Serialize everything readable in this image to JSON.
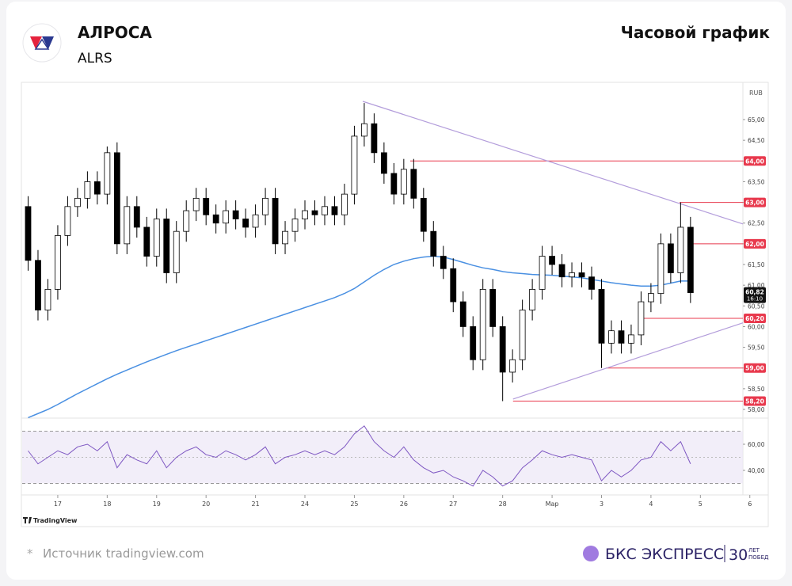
{
  "header": {
    "title": "АЛРОСА",
    "ticker": "ALRS",
    "chart_label": "Часовой график"
  },
  "chart_data": {
    "type": "candlestick",
    "currency": "RUB",
    "brand": "TradingView",
    "grid": false,
    "xlim": [
      -0.72,
      13.86
    ],
    "xticks": [
      {
        "value": 0,
        "label": "17"
      },
      {
        "value": 1,
        "label": "18"
      },
      {
        "value": 2,
        "label": "19"
      },
      {
        "value": 3,
        "label": "20"
      },
      {
        "value": 4,
        "label": "21"
      },
      {
        "value": 5,
        "label": "24"
      },
      {
        "value": 6,
        "label": "25"
      },
      {
        "value": 7,
        "label": "26"
      },
      {
        "value": 8,
        "label": "27"
      },
      {
        "value": 9,
        "label": "28"
      },
      {
        "value": 10,
        "label": "Мар"
      },
      {
        "value": 11,
        "label": "3"
      },
      {
        "value": 12,
        "label": "4"
      },
      {
        "value": 13,
        "label": "5"
      },
      {
        "value": 14,
        "label": "6"
      }
    ],
    "ylim": [
      57.79,
      65.88
    ],
    "yticks": [
      {
        "value": 58,
        "label": "58,00"
      },
      {
        "value": 58.5,
        "label": "58,50"
      },
      {
        "value": 59,
        "label": "59,00"
      },
      {
        "value": 59.5,
        "label": "59,50"
      },
      {
        "value": 60,
        "label": "60,00"
      },
      {
        "value": 60.5,
        "label": "60,50"
      },
      {
        "value": 61,
        "label": "61,00"
      },
      {
        "value": 61.5,
        "label": "61,50"
      },
      {
        "value": 62,
        "label": "62,00"
      },
      {
        "value": 62.5,
        "label": "62,50"
      },
      {
        "value": 63,
        "label": "63,00"
      },
      {
        "value": 63.5,
        "label": "63,50"
      },
      {
        "value": 64,
        "label": "64,00"
      },
      {
        "value": 64.5,
        "label": "64,50"
      },
      {
        "value": 65,
        "label": "65,00"
      }
    ],
    "up_color": "#ffffff",
    "down_color": "#000000",
    "candles": {
      "x": [
        -0.6,
        -0.4,
        -0.2,
        0,
        0.2,
        0.4,
        0.6,
        0.8,
        1,
        1.2,
        1.4,
        1.6,
        1.8,
        2,
        2.2,
        2.4,
        2.6,
        2.8,
        3,
        3.2,
        3.4,
        3.6,
        3.8,
        4,
        4.2,
        4.4,
        4.6,
        4.8,
        5,
        5.2,
        5.4,
        5.6,
        5.8,
        6,
        6.2,
        6.4,
        6.6,
        6.8,
        7,
        7.2,
        7.4,
        7.6,
        7.8,
        8,
        8.2,
        8.4,
        8.6,
        8.8,
        9,
        9.2,
        9.4,
        9.6,
        9.8,
        10,
        10.2,
        10.4,
        10.6,
        10.8,
        11,
        11.2,
        11.4,
        11.6,
        11.8,
        12,
        12.2,
        12.4,
        12.6,
        12.8
      ],
      "open": [
        62.9,
        61.6,
        60.4,
        60.9,
        62.2,
        62.9,
        63.1,
        63.5,
        63.2,
        64.2,
        62.0,
        62.9,
        62.4,
        61.7,
        62.6,
        61.3,
        62.3,
        62.8,
        63.1,
        62.7,
        62.5,
        62.8,
        62.6,
        62.4,
        62.7,
        63.1,
        62.0,
        62.3,
        62.6,
        62.8,
        62.7,
        62.9,
        62.7,
        63.2,
        64.6,
        64.9,
        64.2,
        63.7,
        63.2,
        63.8,
        63.1,
        62.3,
        61.7,
        61.4,
        60.6,
        60.0,
        59.2,
        60.9,
        60.0,
        58.9,
        59.2,
        60.4,
        60.9,
        61.7,
        61.5,
        61.2,
        61.3,
        61.2,
        60.9,
        59.6,
        59.9,
        59.6,
        59.8,
        60.6,
        60.8,
        62.0,
        61.3,
        62.4
      ],
      "high": [
        63.15,
        61.85,
        61.15,
        62.45,
        63.15,
        63.35,
        63.75,
        63.75,
        64.35,
        64.45,
        63.15,
        63.15,
        62.65,
        62.85,
        62.85,
        62.55,
        63.05,
        63.35,
        63.35,
        62.95,
        63.05,
        63.05,
        62.85,
        62.95,
        63.35,
        63.35,
        62.55,
        62.85,
        63.05,
        63.05,
        63.15,
        63.15,
        63.45,
        64.85,
        65.4,
        65.15,
        64.45,
        63.95,
        64.05,
        64.05,
        63.35,
        62.55,
        61.95,
        61.65,
        60.85,
        60.25,
        61.15,
        61.15,
        60.25,
        59.45,
        60.65,
        61.15,
        61.95,
        61.95,
        61.75,
        61.55,
        61.55,
        61.45,
        61.15,
        60.15,
        60.15,
        60.05,
        60.85,
        61.05,
        62.25,
        62.25,
        63.0,
        62.65
      ],
      "low": [
        61.35,
        60.15,
        60.15,
        60.65,
        61.95,
        62.65,
        62.85,
        62.95,
        62.95,
        61.75,
        61.75,
        62.15,
        61.45,
        61.45,
        61.05,
        61.05,
        62.05,
        62.55,
        62.45,
        62.25,
        62.25,
        62.35,
        62.15,
        62.15,
        62.45,
        61.75,
        61.75,
        62.05,
        62.35,
        62.45,
        62.45,
        62.45,
        62.45,
        62.95,
        64.35,
        63.95,
        63.45,
        62.95,
        62.95,
        62.85,
        62.05,
        61.45,
        61.15,
        60.35,
        59.75,
        58.95,
        58.95,
        59.75,
        58.2,
        58.65,
        58.95,
        60.15,
        60.65,
        61.25,
        60.95,
        60.95,
        60.95,
        60.65,
        59.0,
        59.35,
        59.35,
        59.35,
        59.55,
        60.35,
        60.55,
        61.05,
        61.05,
        60.57
      ],
      "close": [
        61.6,
        60.4,
        60.9,
        62.2,
        62.9,
        63.1,
        63.5,
        63.2,
        64.2,
        62.0,
        62.9,
        62.4,
        61.7,
        62.6,
        61.3,
        62.3,
        62.8,
        63.1,
        62.7,
        62.5,
        62.8,
        62.6,
        62.4,
        62.7,
        63.1,
        62.0,
        62.3,
        62.6,
        62.8,
        62.7,
        62.9,
        62.7,
        63.2,
        64.6,
        64.9,
        64.2,
        63.7,
        63.2,
        63.8,
        63.1,
        62.3,
        61.7,
        61.4,
        60.6,
        60.0,
        59.2,
        60.9,
        60.0,
        58.9,
        59.2,
        60.4,
        60.9,
        61.7,
        61.5,
        61.2,
        61.3,
        61.2,
        60.9,
        59.6,
        59.9,
        59.6,
        59.8,
        60.6,
        60.8,
        62.0,
        61.3,
        62.4,
        60.82
      ]
    },
    "ma": {
      "color": "#4a90e2",
      "values": [
        57.8,
        57.9,
        58.0,
        58.12,
        58.25,
        58.38,
        58.5,
        58.62,
        58.74,
        58.85,
        58.95,
        59.05,
        59.15,
        59.24,
        59.33,
        59.42,
        59.5,
        59.58,
        59.66,
        59.74,
        59.82,
        59.9,
        59.98,
        60.06,
        60.14,
        60.22,
        60.3,
        60.38,
        60.46,
        60.54,
        60.62,
        60.7,
        60.8,
        60.92,
        61.08,
        61.24,
        61.38,
        61.5,
        61.58,
        61.64,
        61.68,
        61.7,
        61.68,
        61.62,
        61.55,
        61.48,
        61.42,
        61.38,
        61.33,
        61.3,
        61.28,
        61.26,
        61.25,
        61.24,
        61.22,
        61.2,
        61.18,
        61.14,
        61.1,
        61.06,
        61.03,
        61.0,
        60.98,
        60.98,
        61.0,
        61.05,
        61.1,
        61.1
      ]
    },
    "last_price": {
      "value": 60.82,
      "label": "60,82",
      "time": "16:10"
    },
    "level_color": "#e8394d",
    "levels": [
      {
        "value": 64,
        "label": "64,00",
        "from": 7.13
      },
      {
        "value": 63,
        "label": "63,00",
        "from": 12.58
      },
      {
        "value": 62,
        "label": "62,00",
        "from": 12.77
      },
      {
        "value": 60.2,
        "label": "60,20",
        "from": 11.78
      },
      {
        "value": 59,
        "label": "59,00",
        "from": 11.09
      },
      {
        "value": 58.2,
        "label": "58,20",
        "from": 9.21
      }
    ],
    "trend_color": "#b39ddb",
    "trendlines": [
      {
        "x": [
          6.17,
          13.86
        ],
        "y": [
          65.44,
          62.48
        ]
      },
      {
        "x": [
          9.21,
          13.86
        ],
        "y": [
          58.25,
          60.09
        ]
      }
    ],
    "rsi": {
      "color": "#7e57c2",
      "ylim": [
        21.2,
        78.8
      ],
      "yticks": [
        {
          "value": 40,
          "label": "40,00"
        },
        {
          "value": 60,
          "label": "60,00"
        }
      ],
      "bands": [
        30,
        70
      ],
      "mid": 50,
      "values": [
        55,
        45,
        50,
        55,
        52,
        58,
        60,
        55,
        62,
        42,
        52,
        48,
        45,
        55,
        42,
        50,
        55,
        58,
        52,
        50,
        55,
        52,
        48,
        52,
        58,
        45,
        50,
        52,
        55,
        52,
        55,
        52,
        58,
        68,
        74,
        62,
        55,
        50,
        58,
        48,
        42,
        38,
        40,
        35,
        32,
        28,
        40,
        35,
        28,
        32,
        42,
        48,
        55,
        52,
        50,
        52,
        50,
        48,
        32,
        40,
        35,
        40,
        48,
        50,
        62,
        55,
        62,
        45
      ]
    }
  },
  "footer": {
    "source_mark": "*",
    "source": "Источник tradingview.com",
    "brand": "БКС ЭКСПРЕСС",
    "years": "30",
    "years_text_1": "ЛЕТ",
    "years_text_2": "ПОБЕД"
  }
}
